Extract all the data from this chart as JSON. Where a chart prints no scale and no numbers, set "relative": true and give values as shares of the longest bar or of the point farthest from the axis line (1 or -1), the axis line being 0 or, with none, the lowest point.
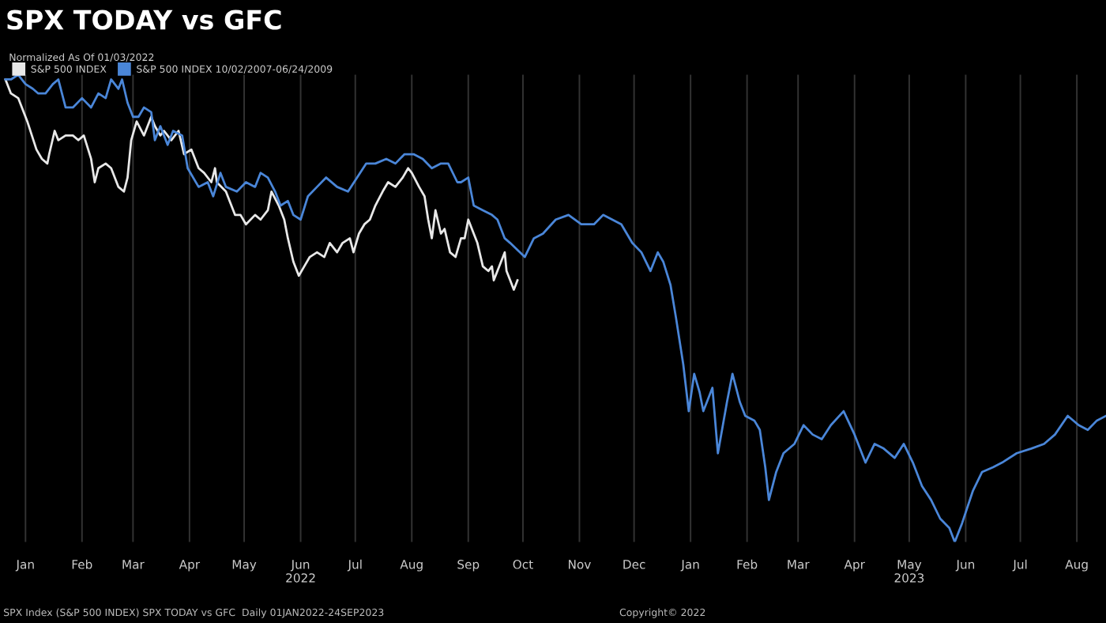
{
  "chart_data": {
    "type": "line",
    "title": "SPX TODAY vs GFC",
    "legend_title": "Normalized As Of 01/03/2022",
    "relative": true,
    "grid": "x",
    "legend": "top left",
    "line_style": "solid",
    "xlim": [
      "2022-01-01",
      "2023-08-31"
    ],
    "xticks": [
      {
        "value": "2022-01-15",
        "label": "Jan"
      },
      {
        "value": "2022-02-15",
        "label": "Feb"
      },
      {
        "value": "2022-03-15",
        "label": "Mar"
      },
      {
        "value": "2022-04-15",
        "label": "Apr"
      },
      {
        "value": "2022-05-15",
        "label": "May"
      },
      {
        "value": "2022-06-15",
        "label": "Jun\n2022"
      },
      {
        "value": "2022-07-15",
        "label": "Jul"
      },
      {
        "value": "2022-08-15",
        "label": "Aug"
      },
      {
        "value": "2022-09-15",
        "label": "Sep"
      },
      {
        "value": "2022-10-15",
        "label": "Oct"
      },
      {
        "value": "2022-11-15",
        "label": "Nov"
      },
      {
        "value": "2022-12-15",
        "label": "Dec"
      },
      {
        "value": "2023-01-15",
        "label": "Jan"
      },
      {
        "value": "2023-02-15",
        "label": "Feb"
      },
      {
        "value": "2023-03-15",
        "label": "Mar"
      },
      {
        "value": "2023-04-15",
        "label": "Apr"
      },
      {
        "value": "2023-05-15",
        "label": "May\n2023"
      },
      {
        "value": "2023-06-15",
        "label": "Jun"
      },
      {
        "value": "2023-07-15",
        "label": "Jul"
      },
      {
        "value": "2023-08-15",
        "label": "Aug"
      }
    ],
    "series": [
      {
        "name": "S&P 500 INDEX",
        "color": "#e8e8e8",
        "x": [
          "2022-01-04",
          "2022-01-07",
          "2022-01-11",
          "2022-01-16",
          "2022-01-21",
          "2022-01-24",
          "2022-01-27",
          "2022-01-28",
          "2022-01-31",
          "2022-02-02",
          "2022-02-06",
          "2022-02-10",
          "2022-02-13",
          "2022-02-16",
          "2022-02-20",
          "2022-02-22",
          "2022-02-24",
          "2022-02-28",
          "2022-03-03",
          "2022-03-07",
          "2022-03-10",
          "2022-03-12",
          "2022-03-14",
          "2022-03-17",
          "2022-03-21",
          "2022-03-25",
          "2022-03-27",
          "2022-03-30",
          "2022-04-01",
          "2022-04-05",
          "2022-04-09",
          "2022-04-12",
          "2022-04-16",
          "2022-04-20",
          "2022-04-23",
          "2022-04-27",
          "2022-04-29",
          "2022-04-30",
          "2022-05-05",
          "2022-05-10",
          "2022-05-13",
          "2022-05-16",
          "2022-05-21",
          "2022-05-24",
          "2022-05-28",
          "2022-05-30",
          "2022-06-03",
          "2022-06-06",
          "2022-06-08",
          "2022-06-11",
          "2022-06-14",
          "2022-06-17",
          "2022-06-20",
          "2022-06-24",
          "2022-06-28",
          "2022-07-01",
          "2022-07-05",
          "2022-07-08",
          "2022-07-12",
          "2022-07-14",
          "2022-07-17",
          "2022-07-20",
          "2022-07-23",
          "2022-07-26",
          "2022-07-30",
          "2022-08-02",
          "2022-08-06",
          "2022-08-10",
          "2022-08-13",
          "2022-08-15",
          "2022-08-19",
          "2022-08-22",
          "2022-08-24",
          "2022-08-26",
          "2022-08-28",
          "2022-08-31",
          "2022-09-02",
          "2022-09-05",
          "2022-09-08",
          "2022-09-11",
          "2022-09-13",
          "2022-09-15",
          "2022-09-18",
          "2022-09-20",
          "2022-09-23",
          "2022-09-26",
          "2022-09-28",
          "2022-09-29",
          "2022-10-01",
          "2022-10-03",
          "2022-10-05",
          "2022-10-06",
          "2022-10-08",
          "2022-10-10",
          "2022-10-12"
        ],
        "values": [
          0.99,
          0.96,
          0.95,
          0.9,
          0.84,
          0.82,
          0.81,
          0.83,
          0.88,
          0.86,
          0.87,
          0.87,
          0.86,
          0.87,
          0.82,
          0.77,
          0.8,
          0.81,
          0.8,
          0.76,
          0.75,
          0.78,
          0.86,
          0.9,
          0.87,
          0.91,
          0.89,
          0.87,
          0.88,
          0.86,
          0.88,
          0.83,
          0.84,
          0.8,
          0.79,
          0.77,
          0.8,
          0.77,
          0.75,
          0.7,
          0.7,
          0.68,
          0.7,
          0.69,
          0.71,
          0.75,
          0.72,
          0.69,
          0.65,
          0.6,
          0.57,
          0.59,
          0.61,
          0.62,
          0.61,
          0.64,
          0.62,
          0.64,
          0.65,
          0.62,
          0.66,
          0.68,
          0.69,
          0.72,
          0.75,
          0.77,
          0.76,
          0.78,
          0.8,
          0.79,
          0.76,
          0.74,
          0.69,
          0.65,
          0.71,
          0.66,
          0.67,
          0.62,
          0.61,
          0.65,
          0.65,
          0.69,
          0.66,
          0.64,
          0.59,
          0.58,
          0.59,
          0.56,
          0.58,
          0.6,
          0.62,
          0.58,
          0.56,
          0.54,
          0.56
        ]
      },
      {
        "name": "S&P 500 INDEX 10/02/2007-06/24/2009",
        "color": "#4a86d8",
        "x": [
          "2022-01-04",
          "2022-01-07",
          "2022-01-11",
          "2022-01-15",
          "2022-01-19",
          "2022-01-22",
          "2022-01-26",
          "2022-01-30",
          "2022-02-02",
          "2022-02-06",
          "2022-02-10",
          "2022-02-15",
          "2022-02-20",
          "2022-02-24",
          "2022-02-28",
          "2022-03-03",
          "2022-03-07",
          "2022-03-09",
          "2022-03-12",
          "2022-03-15",
          "2022-03-18",
          "2022-03-21",
          "2022-03-25",
          "2022-03-27",
          "2022-03-30",
          "2022-04-03",
          "2022-04-06",
          "2022-04-11",
          "2022-04-14",
          "2022-04-20",
          "2022-04-25",
          "2022-04-28",
          "2022-05-02",
          "2022-05-05",
          "2022-05-11",
          "2022-05-16",
          "2022-05-21",
          "2022-05-24",
          "2022-05-28",
          "2022-06-01",
          "2022-06-04",
          "2022-06-08",
          "2022-06-11",
          "2022-06-15",
          "2022-06-19",
          "2022-06-24",
          "2022-06-29",
          "2022-07-05",
          "2022-07-11",
          "2022-07-16",
          "2022-07-21",
          "2022-07-26",
          "2022-08-01",
          "2022-08-06",
          "2022-08-11",
          "2022-08-16",
          "2022-08-21",
          "2022-08-26",
          "2022-08-31",
          "2022-09-04",
          "2022-09-09",
          "2022-09-11",
          "2022-09-15",
          "2022-09-18",
          "2022-09-23",
          "2022-09-28",
          "2022-10-01",
          "2022-10-05",
          "2022-10-08",
          "2022-10-16",
          "2022-10-21",
          "2022-10-26",
          "2022-11-02",
          "2022-11-09",
          "2022-11-16",
          "2022-11-23",
          "2022-11-28",
          "2022-12-03",
          "2022-12-08",
          "2022-12-14",
          "2022-12-19",
          "2022-12-24",
          "2022-12-28",
          "2022-12-31",
          "2023-01-04",
          "2023-01-07",
          "2023-01-11",
          "2023-01-14",
          "2023-01-17",
          "2023-01-20",
          "2023-01-22",
          "2023-01-27",
          "2023-01-30",
          "2023-02-04",
          "2023-02-07",
          "2023-02-11",
          "2023-02-14",
          "2023-02-19",
          "2023-02-22",
          "2023-02-25",
          "2023-02-27",
          "2023-03-03",
          "2023-03-07",
          "2023-03-13",
          "2023-03-18",
          "2023-03-23",
          "2023-03-28",
          "2023-04-02",
          "2023-04-09",
          "2023-04-15",
          "2023-04-21",
          "2023-04-26",
          "2023-05-01",
          "2023-05-07",
          "2023-05-12",
          "2023-05-17",
          "2023-05-22",
          "2023-05-27",
          "2023-06-01",
          "2023-06-06",
          "2023-06-09",
          "2023-06-13",
          "2023-06-19",
          "2023-06-24",
          "2023-06-30",
          "2023-07-05",
          "2023-07-13",
          "2023-07-21",
          "2023-07-28",
          "2023-08-03",
          "2023-08-10",
          "2023-08-16",
          "2023-08-21",
          "2023-08-26",
          "2023-08-31"
        ],
        "values": [
          0.99,
          0.99,
          1.0,
          0.98,
          0.97,
          0.96,
          0.96,
          0.98,
          0.99,
          0.93,
          0.93,
          0.95,
          0.93,
          0.96,
          0.95,
          0.99,
          0.97,
          0.99,
          0.94,
          0.91,
          0.91,
          0.93,
          0.92,
          0.86,
          0.89,
          0.85,
          0.88,
          0.87,
          0.8,
          0.76,
          0.77,
          0.74,
          0.79,
          0.76,
          0.75,
          0.77,
          0.76,
          0.79,
          0.78,
          0.75,
          0.72,
          0.73,
          0.7,
          0.69,
          0.74,
          0.76,
          0.78,
          0.76,
          0.75,
          0.78,
          0.81,
          0.81,
          0.82,
          0.81,
          0.83,
          0.83,
          0.82,
          0.8,
          0.81,
          0.81,
          0.77,
          0.77,
          0.78,
          0.72,
          0.71,
          0.7,
          0.69,
          0.65,
          0.64,
          0.61,
          0.65,
          0.66,
          0.69,
          0.7,
          0.68,
          0.68,
          0.7,
          0.69,
          0.68,
          0.64,
          0.62,
          0.58,
          0.62,
          0.6,
          0.55,
          0.48,
          0.38,
          0.28,
          0.36,
          0.32,
          0.28,
          0.33,
          0.19,
          0.3,
          0.36,
          0.3,
          0.27,
          0.26,
          0.24,
          0.16,
          0.09,
          0.15,
          0.19,
          0.21,
          0.25,
          0.23,
          0.22,
          0.25,
          0.28,
          0.23,
          0.17,
          0.21,
          0.2,
          0.18,
          0.21,
          0.17,
          0.12,
          0.09,
          0.05,
          0.03,
          0.0,
          0.04,
          0.11,
          0.15,
          0.16,
          0.17,
          0.19,
          0.2,
          0.21,
          0.23,
          0.27,
          0.25,
          0.24,
          0.26,
          0.27
        ]
      }
    ],
    "annotations": [
      "SPX Index (S&P 500 INDEX) SPX TODAY vs GFC  Daily 01JAN2022-24SEP2023",
      "Copyright© 2022"
    ]
  }
}
